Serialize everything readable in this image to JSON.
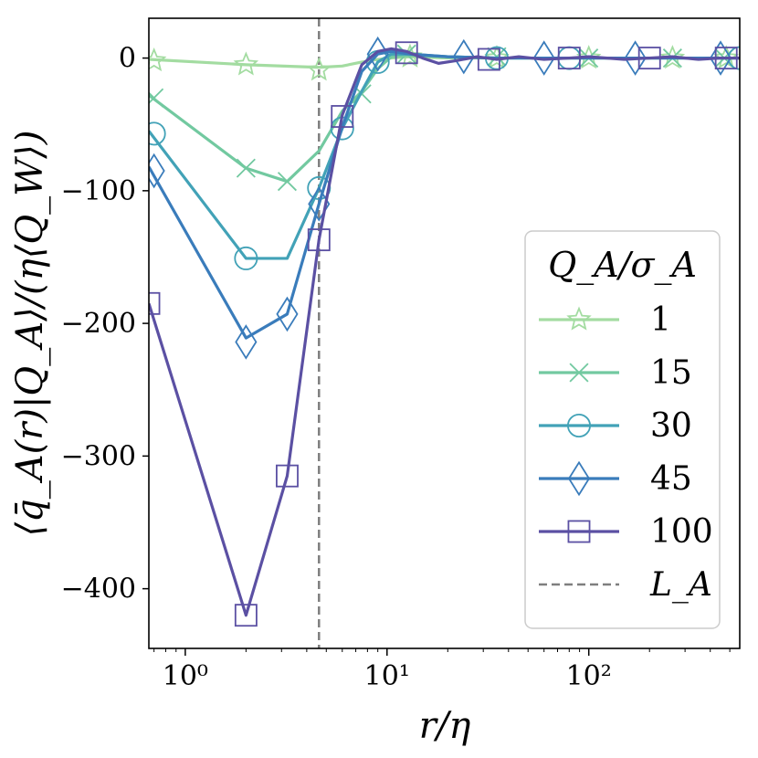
{
  "chart_data": {
    "type": "line",
    "xscale": "log",
    "xlabel": "r/η",
    "ylabel": "⟨q̄_A(r)|Q_A⟩/(η⟨Q_W⟩)",
    "xlim": [
      0.66,
      560
    ],
    "ylim": [
      -445,
      30
    ],
    "xticks": [
      {
        "value": 1,
        "label": "10⁰"
      },
      {
        "value": 10,
        "label": "10¹"
      },
      {
        "value": 100,
        "label": "10²"
      }
    ],
    "yticks": [
      {
        "value": 0,
        "label": "0"
      },
      {
        "value": -100,
        "label": "−100"
      },
      {
        "value": -200,
        "label": "−200"
      },
      {
        "value": -300,
        "label": "−300"
      },
      {
        "value": -400,
        "label": "−400"
      }
    ],
    "vline": {
      "name": "L_A",
      "x": 4.6,
      "color": "#7f7f7f"
    },
    "legend": {
      "title": "Q_A/σ_A",
      "position": "right",
      "vline_label": "L_A"
    },
    "series": [
      {
        "name": "1",
        "color": "#a3dca1",
        "marker": "star",
        "x": [
          0.66,
          2.0,
          4.6,
          6.0,
          7.5,
          9.0,
          10.5,
          13.0,
          20,
          35,
          80,
          100,
          260,
          560
        ],
        "y": [
          -1,
          -5,
          -7,
          -6,
          -3,
          -1,
          0,
          1,
          0,
          0,
          0,
          0,
          0,
          0
        ],
        "mx": [
          0.7,
          2.0,
          4.6,
          13.0,
          35,
          100,
          260,
          480
        ],
        "my": [
          -2,
          -5,
          -9,
          1,
          0,
          0,
          0,
          0
        ]
      },
      {
        "name": "15",
        "color": "#72c9a0",
        "marker": "x",
        "x": [
          0.66,
          2.0,
          3.2,
          4.6,
          6.0,
          7.5,
          9.0,
          10.5,
          13,
          20,
          35,
          100,
          260,
          560
        ],
        "y": [
          -28,
          -83,
          -93,
          -70,
          -40,
          -25,
          -8,
          1,
          2,
          1,
          0,
          0,
          0,
          0
        ],
        "mx": [
          0.7,
          2.0,
          3.2,
          7.5,
          12.5,
          35,
          100,
          260,
          470
        ],
        "my": [
          -30,
          -83,
          -93,
          -27,
          3,
          1,
          0,
          0,
          0
        ]
      },
      {
        "name": "30",
        "color": "#42a2b7",
        "marker": "circle",
        "x": [
          0.66,
          2.0,
          3.2,
          4.6,
          6.0,
          7.5,
          9.0,
          10.5,
          13,
          20,
          35,
          80,
          200,
          560
        ],
        "y": [
          -55,
          -151,
          -151,
          -98,
          -53,
          -25,
          -3,
          3,
          3,
          1,
          0,
          0,
          0,
          0
        ],
        "mx": [
          0.7,
          2.0,
          4.6,
          6.0,
          9.0,
          35,
          80,
          560
        ],
        "my": [
          -57,
          -151,
          -98,
          -53,
          -3,
          0,
          0,
          0
        ]
      },
      {
        "name": "45",
        "color": "#3a7cbb",
        "marker": "diamond",
        "x": [
          0.66,
          2.0,
          3.2,
          4.6,
          6.0,
          7.5,
          9.0,
          10.5,
          13,
          20,
          35,
          60,
          170,
          560
        ],
        "y": [
          -82,
          -211,
          -193,
          -110,
          -52,
          -10,
          3,
          5,
          3,
          1,
          0,
          0,
          0,
          0
        ],
        "mx": [
          0.7,
          2.0,
          3.2,
          4.6,
          9.0,
          24,
          60,
          170,
          450
        ],
        "my": [
          -85,
          -214,
          -193,
          -110,
          3,
          1,
          0,
          0,
          0
        ]
      },
      {
        "name": "100",
        "color": "#5b50a3",
        "marker": "square",
        "x": [
          0.66,
          2.0,
          3.2,
          4.6,
          6.0,
          7.5,
          9.0,
          10.5,
          12.5,
          15,
          18,
          22,
          28,
          35,
          45,
          60,
          80,
          100,
          150,
          200,
          260,
          350,
          450,
          560
        ],
        "y": [
          -185,
          -420,
          -315,
          -137,
          -43,
          -5,
          5,
          7,
          5,
          0,
          -4,
          -2,
          1,
          -1,
          1,
          -1,
          0,
          1,
          -1,
          0,
          1,
          -1,
          0,
          0
        ],
        "mx": [
          0.66,
          2.0,
          3.2,
          4.6,
          6.0,
          12.5,
          32,
          80,
          200,
          480
        ],
        "my": [
          -185,
          -420,
          -315,
          -137,
          -44,
          4,
          -1,
          0,
          0,
          0
        ]
      }
    ]
  }
}
